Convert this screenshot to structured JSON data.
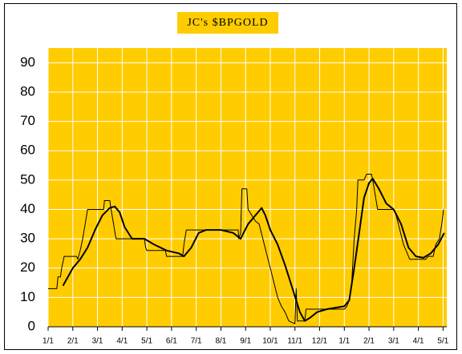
{
  "chart_data": {
    "type": "line",
    "title": "JC's $BPGOLD",
    "background": "#ffcc00",
    "grid": true,
    "grid_color": "#ffffff",
    "xlim": [
      0,
      16.15
    ],
    "ylim": [
      0,
      95
    ],
    "yticks": [
      0,
      10,
      20,
      30,
      40,
      50,
      60,
      70,
      80,
      90
    ],
    "xticks": [
      {
        "value": 0,
        "label": "1/1"
      },
      {
        "value": 1,
        "label": "2/1"
      },
      {
        "value": 2,
        "label": "3/1"
      },
      {
        "value": 3,
        "label": "4/1"
      },
      {
        "value": 4,
        "label": "5/1"
      },
      {
        "value": 5,
        "label": "6/1"
      },
      {
        "value": 6,
        "label": "7/1"
      },
      {
        "value": 7,
        "label": "8/1"
      },
      {
        "value": 8,
        "label": "9/1"
      },
      {
        "value": 9,
        "label": "10/1"
      },
      {
        "value": 10,
        "label": "11/1"
      },
      {
        "value": 11,
        "label": "12/1"
      },
      {
        "value": 12,
        "label": "1/1"
      },
      {
        "value": 13,
        "label": "2/1"
      },
      {
        "value": 14,
        "label": "3/1"
      },
      {
        "value": 15,
        "label": "4/1"
      },
      {
        "value": 16,
        "label": "5/1"
      }
    ],
    "series": [
      {
        "color": "#000000",
        "width": 1,
        "x": [
          0,
          0.35,
          0.4,
          0.5,
          0.55,
          0.65,
          1.15,
          1.2,
          1.3,
          1.4,
          1.5,
          1.6,
          2.25,
          2.28,
          2.5,
          2.55,
          2.65,
          2.75,
          3.9,
          3.95,
          4.0,
          4.75,
          4.8,
          5.45,
          5.5,
          5.6,
          7.7,
          7.72,
          7.8,
          7.85,
          8.05,
          8.1,
          8.25,
          8.4,
          8.55,
          8.7,
          8.85,
          9.0,
          9.15,
          9.3,
          9.45,
          9.6,
          9.75,
          10.0,
          10.05,
          10.1,
          10.4,
          10.45,
          12.0,
          12.1,
          12.2,
          12.3,
          12.4,
          12.5,
          12.55,
          12.8,
          12.9,
          13.1,
          13.15,
          13.35,
          14.0,
          14.1,
          14.25,
          14.4,
          14.55,
          14.65,
          15.3,
          15.4,
          15.6,
          15.7,
          15.85,
          15.95,
          16.02
        ],
        "values": [
          13,
          13,
          17,
          17,
          20,
          24,
          24,
          23,
          26,
          30,
          35,
          40,
          40,
          43,
          43,
          40,
          35,
          30,
          30,
          27,
          26,
          26,
          24,
          24,
          28,
          33,
          33,
          30,
          32,
          47,
          47,
          40,
          38,
          36,
          35,
          30,
          25,
          20,
          15,
          10,
          7,
          5,
          2,
          1,
          13,
          2,
          2,
          6,
          6,
          7,
          9,
          15,
          30,
          40,
          50,
          50,
          52,
          52,
          50,
          40,
          40,
          38,
          33,
          28,
          25,
          23,
          23,
          24,
          24,
          28,
          30,
          35,
          40
        ]
      },
      {
        "color": "#000000",
        "width": 2,
        "x": [
          0.6,
          1.0,
          1.3,
          1.6,
          1.9,
          2.2,
          2.5,
          2.7,
          2.9,
          3.1,
          3.4,
          3.9,
          4.3,
          4.8,
          5.3,
          5.5,
          5.8,
          6.1,
          6.4,
          7.0,
          7.5,
          7.8,
          8.1,
          8.5,
          8.65,
          8.8,
          9.0,
          9.3,
          9.6,
          9.9,
          10.2,
          10.4,
          10.6,
          10.9,
          11.3,
          12.0,
          12.2,
          12.4,
          12.6,
          12.8,
          13.0,
          13.15,
          13.4,
          13.7,
          14.0,
          14.3,
          14.6,
          14.9,
          15.2,
          15.5,
          15.8,
          16.05
        ],
        "values": [
          14,
          20,
          23,
          27,
          33,
          38,
          40.5,
          41,
          39,
          34,
          30,
          30,
          28,
          26,
          25,
          24,
          27,
          32,
          33,
          33,
          32,
          30,
          35,
          39,
          40.5,
          38,
          33,
          28,
          21,
          13,
          5,
          2,
          3,
          5,
          6,
          7,
          9,
          20,
          32,
          44,
          49,
          50.5,
          47,
          42,
          40,
          35,
          27,
          24,
          23.5,
          25,
          28,
          32
        ]
      }
    ]
  }
}
